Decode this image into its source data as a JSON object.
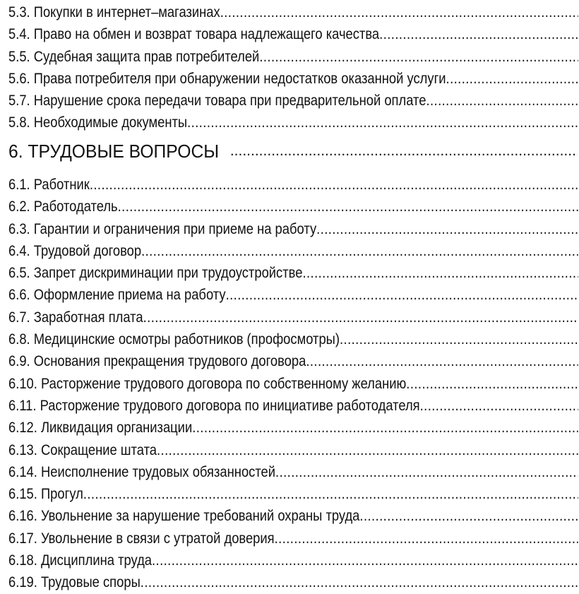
{
  "toc": {
    "section5_items": [
      "5.3. Покупки в интернет–магазинах",
      "5.4. Право на обмен и возврат товара надлежащего качества ",
      "5.5. Судебная защита прав потребителей",
      "5.6. Права потребителя при обнаружении недостатков оказанной услуги ",
      "5.7. Нарушение срока передачи товара при предварительной оплате",
      "5.8. Необходимые документы "
    ],
    "section6_heading": "6. ТРУДОВЫЕ ВОПРОСЫ",
    "section6_items": [
      "6.1. Работник",
      "6.2. Работодатель ",
      "6.3. Гарантии и ограничения при приеме на работу ",
      "6.4. Трудовой договор ",
      "6.5. Запрет дискриминации при трудоустройстве ",
      "6.6. Оформление приема на работу ",
      "6.7. Заработная плата",
      "6.8. Медицинские осмотры работников (профосмотры) ",
      "6.9. Основания прекращения трудового договора ",
      "6.10. Расторжение трудового договора по собственному желанию ",
      "6.11. Расторжение трудового договора по инициативе работодателя ",
      "6.12. Ликвидация организации ",
      "6.13. Сокращение штата ",
      "6.14. Неисполнение трудовых обязанностей",
      "6.15. Прогул ",
      "6.16. Увольнение за нарушение требований охраны труда ",
      "6.17. Увольнение в связи с утратой доверия ",
      "6.18. Дисциплина труда ",
      "6.19. Трудовые споры"
    ]
  }
}
